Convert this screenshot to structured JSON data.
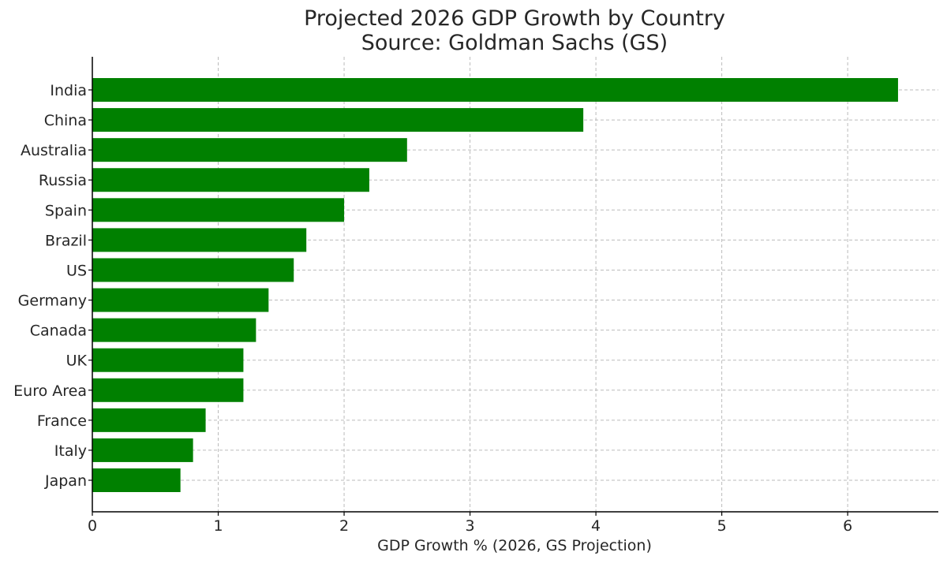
{
  "chart_data": {
    "type": "bar",
    "orientation": "horizontal",
    "title": "Projected 2026 GDP Growth by Country",
    "subtitle": "Source: Goldman Sachs (GS)",
    "xlabel": "GDP Growth % (2026, GS Projection)",
    "ylabel": "",
    "categories": [
      "India",
      "China",
      "Australia",
      "Russia",
      "Spain",
      "Brazil",
      "US",
      "Germany",
      "Canada",
      "UK",
      "Euro Area",
      "France",
      "Italy",
      "Japan"
    ],
    "values": [
      6.4,
      3.9,
      2.5,
      2.2,
      2.0,
      1.7,
      1.6,
      1.4,
      1.3,
      1.2,
      1.2,
      0.9,
      0.8,
      0.7
    ],
    "xlim": [
      0,
      6.72
    ],
    "xticks": [
      0,
      1,
      2,
      3,
      4,
      5,
      6
    ],
    "grid": true,
    "bar_color": "#008000",
    "legend": "none"
  }
}
